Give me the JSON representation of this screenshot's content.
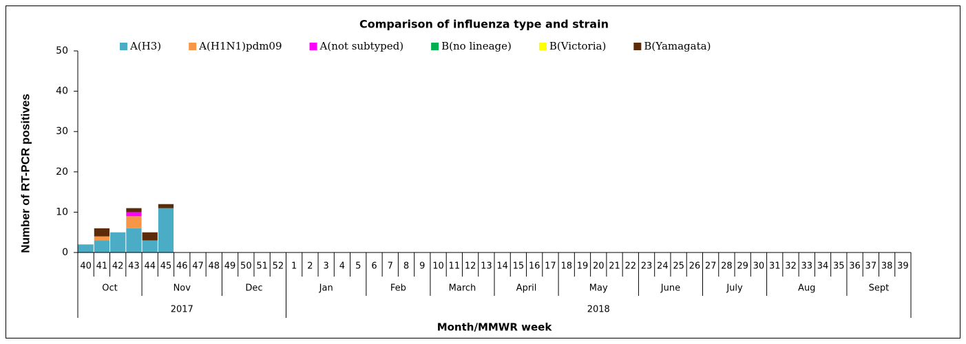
{
  "chart_data": {
    "type": "stacked_bar",
    "title": "Comparison of influenza type and strain",
    "x_label": "Month/MMWR week",
    "y_label": "Number of RT-PCR positives",
    "categories": [
      "40",
      "41",
      "42",
      "43",
      "44",
      "45",
      "46",
      "47",
      "48",
      "49",
      "50",
      "51",
      "52",
      "1",
      "2",
      "3",
      "4",
      "5",
      "6",
      "7",
      "8",
      "9",
      "10",
      "11",
      "12",
      "13",
      "14",
      "15",
      "16",
      "17",
      "18",
      "19",
      "20",
      "21",
      "22",
      "23",
      "24",
      "25",
      "26",
      "27",
      "28",
      "29",
      "30",
      "31",
      "32",
      "33",
      "34",
      "35",
      "36",
      "37",
      "38",
      "39"
    ],
    "month_groups": [
      {
        "label": "Oct",
        "span": 4
      },
      {
        "label": "Nov",
        "span": 5
      },
      {
        "label": "Dec",
        "span": 4
      },
      {
        "label": "Jan",
        "span": 5
      },
      {
        "label": "Feb",
        "span": 4
      },
      {
        "label": "March",
        "span": 4
      },
      {
        "label": "April",
        "span": 4
      },
      {
        "label": "May",
        "span": 5
      },
      {
        "label": "June",
        "span": 4
      },
      {
        "label": "July",
        "span": 4
      },
      {
        "label": "Aug",
        "span": 5
      },
      {
        "label": "Sept",
        "span": 4
      }
    ],
    "year_groups": [
      {
        "label": "2017",
        "span": 13
      },
      {
        "label": "2018",
        "span": 39
      }
    ],
    "series": [
      {
        "name": "A(H3)",
        "color": "#4bacc6",
        "values": [
          2,
          3,
          5,
          6,
          3,
          11,
          0,
          0,
          0,
          0,
          0,
          0,
          0,
          0,
          0,
          0,
          0,
          0,
          0,
          0,
          0,
          0,
          0,
          0,
          0,
          0,
          0,
          0,
          0,
          0,
          0,
          0,
          0,
          0,
          0,
          0,
          0,
          0,
          0,
          0,
          0,
          0,
          0,
          0,
          0,
          0,
          0,
          0,
          0,
          0,
          0,
          0
        ]
      },
      {
        "name": "A(H1N1)pdm09",
        "color": "#f79646",
        "values": [
          0,
          1,
          0,
          3,
          0,
          0,
          0,
          0,
          0,
          0,
          0,
          0,
          0,
          0,
          0,
          0,
          0,
          0,
          0,
          0,
          0,
          0,
          0,
          0,
          0,
          0,
          0,
          0,
          0,
          0,
          0,
          0,
          0,
          0,
          0,
          0,
          0,
          0,
          0,
          0,
          0,
          0,
          0,
          0,
          0,
          0,
          0,
          0,
          0,
          0,
          0,
          0
        ]
      },
      {
        "name": "A(not subtyped)",
        "color": "#ff00ff",
        "values": [
          0,
          0,
          0,
          1,
          0,
          0,
          0,
          0,
          0,
          0,
          0,
          0,
          0,
          0,
          0,
          0,
          0,
          0,
          0,
          0,
          0,
          0,
          0,
          0,
          0,
          0,
          0,
          0,
          0,
          0,
          0,
          0,
          0,
          0,
          0,
          0,
          0,
          0,
          0,
          0,
          0,
          0,
          0,
          0,
          0,
          0,
          0,
          0,
          0,
          0,
          0,
          0
        ]
      },
      {
        "name": "B(no lineage)",
        "color": "#00b050",
        "values": [
          0,
          0,
          0,
          0,
          0,
          0,
          0,
          0,
          0,
          0,
          0,
          0,
          0,
          0,
          0,
          0,
          0,
          0,
          0,
          0,
          0,
          0,
          0,
          0,
          0,
          0,
          0,
          0,
          0,
          0,
          0,
          0,
          0,
          0,
          0,
          0,
          0,
          0,
          0,
          0,
          0,
          0,
          0,
          0,
          0,
          0,
          0,
          0,
          0,
          0,
          0,
          0
        ]
      },
      {
        "name": "B(Victoria)",
        "color": "#ffff00",
        "values": [
          0,
          0,
          0,
          0,
          0,
          0,
          0,
          0,
          0,
          0,
          0,
          0,
          0,
          0,
          0,
          0,
          0,
          0,
          0,
          0,
          0,
          0,
          0,
          0,
          0,
          0,
          0,
          0,
          0,
          0,
          0,
          0,
          0,
          0,
          0,
          0,
          0,
          0,
          0,
          0,
          0,
          0,
          0,
          0,
          0,
          0,
          0,
          0,
          0,
          0,
          0,
          0
        ]
      },
      {
        "name": "B(Yamagata)",
        "color": "#5c2c0a",
        "values": [
          0,
          2,
          0,
          1,
          2,
          1,
          0,
          0,
          0,
          0,
          0,
          0,
          0,
          0,
          0,
          0,
          0,
          0,
          0,
          0,
          0,
          0,
          0,
          0,
          0,
          0,
          0,
          0,
          0,
          0,
          0,
          0,
          0,
          0,
          0,
          0,
          0,
          0,
          0,
          0,
          0,
          0,
          0,
          0,
          0,
          0,
          0,
          0,
          0,
          0,
          0,
          0
        ]
      }
    ],
    "ylim": [
      0,
      50
    ],
    "yticks": [
      0,
      10,
      20,
      30,
      40,
      50
    ],
    "grid": false,
    "legend": "top"
  }
}
